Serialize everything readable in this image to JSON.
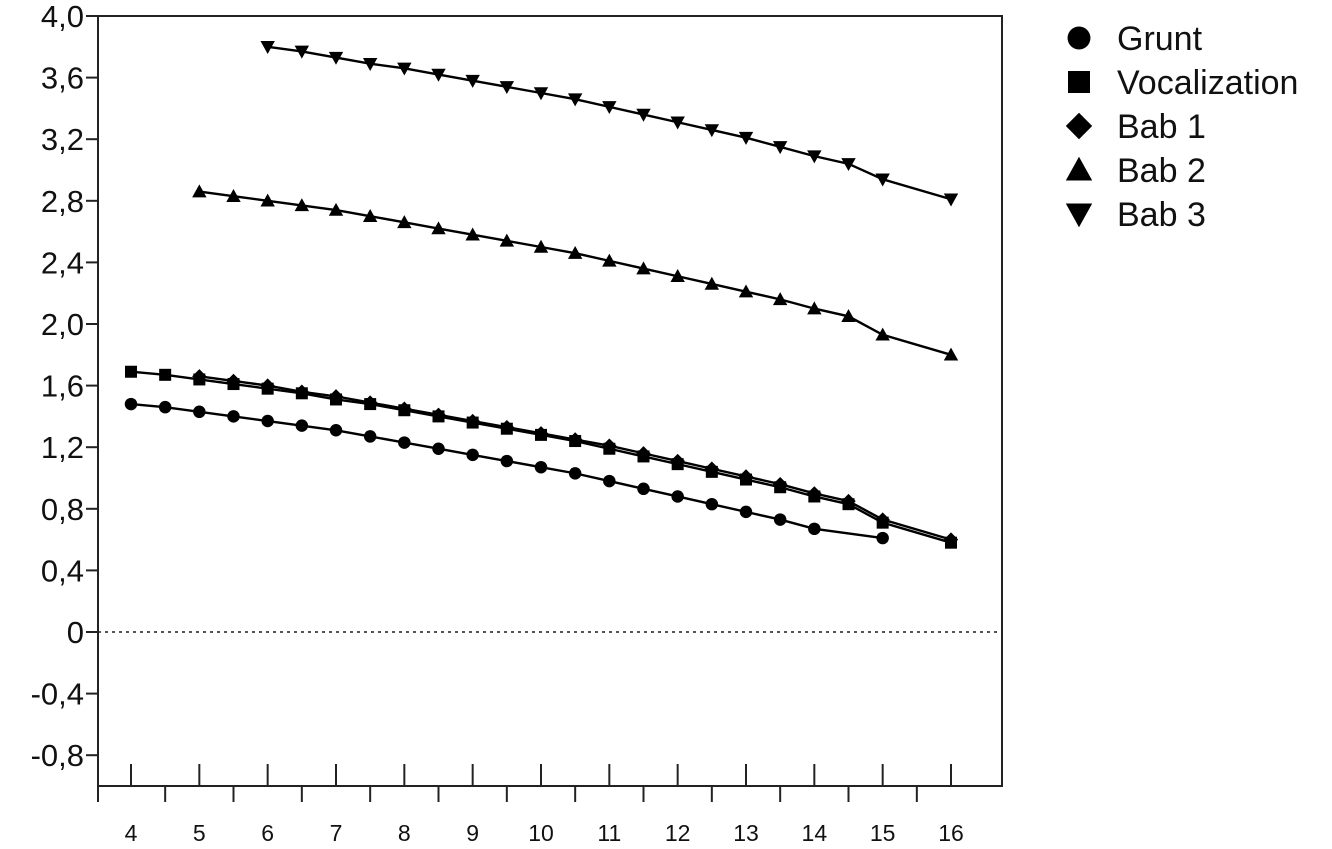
{
  "chart_data": {
    "type": "line",
    "title": "",
    "xlabel": "",
    "ylabel": "",
    "xlim": [
      3.5,
      16.7
    ],
    "ylim": [
      -1.0,
      4.0
    ],
    "x_ticks": [
      4,
      5,
      6,
      7,
      8,
      9,
      10,
      11,
      12,
      13,
      14,
      15,
      16
    ],
    "y_ticks": [
      -0.8,
      -0.4,
      0,
      0.4,
      0.8,
      1.2,
      1.6,
      2.0,
      2.4,
      2.8,
      3.2,
      3.6,
      4.0
    ],
    "x_tick_labels": [
      "4",
      "5",
      "6",
      "7",
      "8",
      "9",
      "10",
      "11",
      "12",
      "13",
      "14",
      "15",
      "16"
    ],
    "y_tick_labels": [
      "-0,8",
      "-0,4",
      "0",
      "0,4",
      "0,8",
      "1,2",
      "1,6",
      "2,0",
      "2,4",
      "2,8",
      "3,2",
      "3,6",
      "4,0"
    ],
    "zero_line": "dotted",
    "grid": false,
    "legend_position": "right",
    "series": [
      {
        "name": "Grunt",
        "marker": "circle",
        "x": [
          4.0,
          4.5,
          5.0,
          5.5,
          6.0,
          6.5,
          7.0,
          7.5,
          8.0,
          8.5,
          9.0,
          9.5,
          10.0,
          10.5,
          11.0,
          11.5,
          12.0,
          12.5,
          13.0,
          13.5,
          14.0,
          15.0
        ],
        "y": [
          1.48,
          1.46,
          1.43,
          1.4,
          1.37,
          1.34,
          1.31,
          1.27,
          1.23,
          1.19,
          1.15,
          1.11,
          1.07,
          1.03,
          0.98,
          0.93,
          0.88,
          0.83,
          0.78,
          0.73,
          0.67,
          0.61
        ]
      },
      {
        "name": "Vocalization",
        "marker": "square",
        "x": [
          4.0,
          4.5,
          5.0,
          5.5,
          6.0,
          6.5,
          7.0,
          7.5,
          8.0,
          8.5,
          9.0,
          9.5,
          10.0,
          10.5,
          11.0,
          11.5,
          12.0,
          12.5,
          13.0,
          13.5,
          14.0,
          14.5,
          15.0,
          16.0
        ],
        "y": [
          1.69,
          1.67,
          1.64,
          1.61,
          1.58,
          1.55,
          1.51,
          1.48,
          1.44,
          1.4,
          1.36,
          1.32,
          1.28,
          1.24,
          1.19,
          1.14,
          1.09,
          1.04,
          0.99,
          0.94,
          0.88,
          0.83,
          0.71,
          0.58
        ]
      },
      {
        "name": "Bab 1",
        "marker": "diamond",
        "x": [
          5.0,
          5.5,
          6.0,
          6.5,
          7.0,
          7.5,
          8.0,
          8.5,
          9.0,
          9.5,
          10.0,
          10.5,
          11.0,
          11.5,
          12.0,
          12.5,
          13.0,
          13.5,
          14.0,
          14.5,
          15.0,
          16.0
        ],
        "y": [
          1.66,
          1.63,
          1.6,
          1.56,
          1.53,
          1.49,
          1.45,
          1.41,
          1.37,
          1.33,
          1.29,
          1.25,
          1.21,
          1.16,
          1.11,
          1.06,
          1.01,
          0.96,
          0.9,
          0.85,
          0.73,
          0.6
        ]
      },
      {
        "name": "Bab 2",
        "marker": "triangle-up",
        "x": [
          5.0,
          5.5,
          6.0,
          6.5,
          7.0,
          7.5,
          8.0,
          8.5,
          9.0,
          9.5,
          10.0,
          10.5,
          11.0,
          11.5,
          12.0,
          12.5,
          13.0,
          13.5,
          14.0,
          14.5,
          15.0,
          16.0
        ],
        "y": [
          2.86,
          2.83,
          2.8,
          2.77,
          2.74,
          2.7,
          2.66,
          2.62,
          2.58,
          2.54,
          2.5,
          2.46,
          2.41,
          2.36,
          2.31,
          2.26,
          2.21,
          2.16,
          2.1,
          2.05,
          1.93,
          1.8
        ]
      },
      {
        "name": "Bab 3",
        "marker": "triangle-down",
        "x": [
          6.0,
          6.5,
          7.0,
          7.5,
          8.0,
          8.5,
          9.0,
          9.5,
          10.0,
          10.5,
          11.0,
          11.5,
          12.0,
          12.5,
          13.0,
          13.5,
          14.0,
          14.5,
          15.0,
          16.0
        ],
        "y": [
          3.8,
          3.77,
          3.73,
          3.69,
          3.66,
          3.62,
          3.58,
          3.54,
          3.5,
          3.46,
          3.41,
          3.36,
          3.31,
          3.26,
          3.21,
          3.15,
          3.09,
          3.04,
          2.94,
          2.81
        ]
      }
    ]
  }
}
